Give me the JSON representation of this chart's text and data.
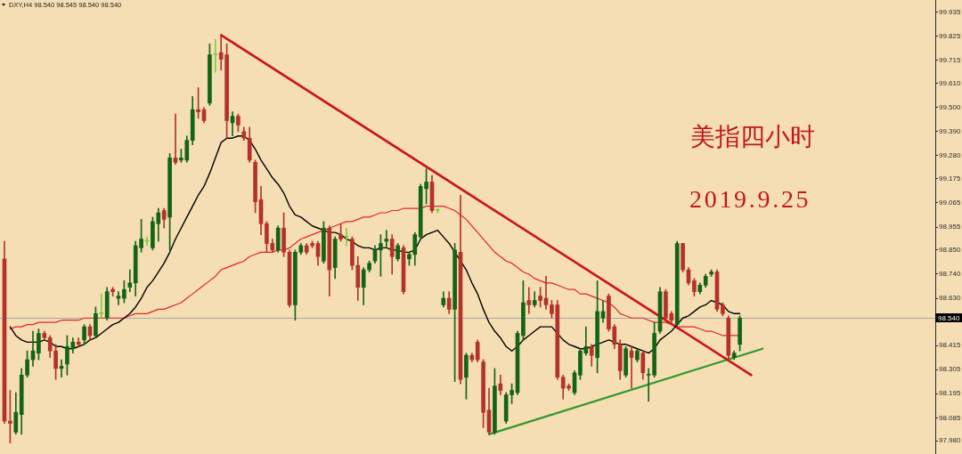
{
  "chart_data": {
    "type": "candlestick",
    "title": "美指四小时",
    "subtitle": "2019.9.25",
    "annotations": [
      "DXY,H4  98.540 98.545 98.540 98.540"
    ],
    "categories": [
      null,
      null,
      null,
      null,
      null,
      null,
      null,
      null,
      null,
      null,
      null,
      null,
      null,
      null,
      null,
      null,
      null,
      null,
      null,
      null,
      null,
      null,
      null,
      null,
      null,
      null,
      null,
      null,
      null,
      null,
      null,
      null,
      null,
      null,
      null,
      null,
      null,
      null,
      null,
      null,
      null,
      null,
      null,
      null,
      null,
      null,
      null,
      null,
      null,
      null,
      null,
      null,
      null,
      null,
      null,
      null,
      null,
      null,
      null,
      null,
      null,
      null,
      null,
      null,
      null,
      null,
      null,
      null,
      null,
      null,
      null,
      null,
      null,
      null,
      null,
      null,
      null,
      null,
      null,
      null,
      null,
      null,
      null,
      null,
      null,
      null,
      null,
      null,
      null,
      null,
      null,
      null,
      null,
      null,
      null,
      null,
      null,
      null,
      null,
      null,
      null,
      null,
      null,
      null,
      null,
      null,
      null,
      null,
      null,
      null,
      null,
      null,
      null,
      null,
      null,
      null,
      null,
      null,
      null,
      null,
      null,
      null,
      null,
      null,
      null,
      null,
      null,
      null,
      null,
      null,
      null,
      null,
      null,
      null
    ],
    "ohlc": [
      [
        98.81,
        98.89,
        98.06,
        98.07
      ],
      [
        98.07,
        98.21,
        97.97,
        98.06
      ],
      [
        98.02,
        98.2,
        98.01,
        98.11
      ],
      [
        98.1,
        98.31,
        98.01,
        98.28
      ],
      [
        98.28,
        98.39,
        98.27,
        98.35
      ],
      [
        98.35,
        98.48,
        98.32,
        98.39
      ],
      [
        98.38,
        98.49,
        98.35,
        98.47
      ],
      [
        98.47,
        98.48,
        98.44,
        98.45
      ],
      [
        98.45,
        98.46,
        98.36,
        98.39
      ],
      [
        98.39,
        98.42,
        98.26,
        98.31
      ],
      [
        98.31,
        98.35,
        98.27,
        98.32
      ],
      [
        98.33,
        98.46,
        98.28,
        98.41
      ],
      [
        98.4,
        98.45,
        98.38,
        98.43
      ],
      [
        98.43,
        98.45,
        98.41,
        98.42
      ],
      [
        98.44,
        98.51,
        98.42,
        98.5
      ],
      [
        98.5,
        98.51,
        98.44,
        98.46
      ],
      [
        98.46,
        98.59,
        98.45,
        98.56
      ],
      [
        98.56,
        98.65,
        98.54,
        98.56
      ],
      [
        98.54,
        98.68,
        98.53,
        98.66
      ],
      [
        98.67,
        98.68,
        98.64,
        98.66
      ],
      [
        98.63,
        98.66,
        98.6,
        98.64
      ],
      [
        98.63,
        98.71,
        98.61,
        98.67
      ],
      [
        98.68,
        98.76,
        98.66,
        98.7
      ],
      [
        98.7,
        98.89,
        98.64,
        98.87
      ],
      [
        98.86,
        98.99,
        98.84,
        98.9
      ],
      [
        98.89,
        98.91,
        98.87,
        98.89
      ],
      [
        98.86,
        99,
        98.85,
        98.98
      ],
      [
        98.97,
        99.04,
        98.89,
        99.02
      ],
      [
        99.03,
        99.04,
        98.95,
        98.99
      ],
      [
        99,
        99.29,
        98.85,
        99.27
      ],
      [
        99.27,
        99.47,
        99.24,
        99.25
      ],
      [
        99.26,
        99.31,
        99.25,
        99.27
      ],
      [
        99.26,
        99.37,
        99.25,
        99.35
      ],
      [
        99.35,
        99.55,
        99.33,
        99.49
      ],
      [
        99.49,
        99.59,
        99.45,
        99.48
      ],
      [
        99.49,
        99.5,
        99.43,
        99.44
      ],
      [
        99.52,
        99.79,
        99.51,
        99.74
      ],
      [
        99.74,
        99.81,
        99.66,
        99.74
      ],
      [
        99.75,
        99.83,
        99.67,
        99.72
      ],
      [
        99.74,
        99.79,
        99.36,
        99.44
      ],
      [
        99.43,
        99.48,
        99.37,
        99.46
      ],
      [
        99.46,
        99.47,
        99.39,
        99.42
      ],
      [
        99.39,
        99.41,
        99.35,
        99.36
      ],
      [
        99.36,
        99.41,
        99.25,
        99.26
      ],
      [
        99.25,
        99.26,
        99.02,
        99.07
      ],
      [
        99.08,
        99.14,
        98.92,
        98.97
      ],
      [
        98.97,
        98.98,
        98.84,
        98.88
      ],
      [
        98.88,
        98.9,
        98.84,
        98.85
      ],
      [
        98.85,
        98.96,
        98.84,
        98.95
      ],
      [
        98.95,
        99.02,
        98.82,
        98.84
      ],
      [
        98.84,
        98.85,
        98.59,
        98.6
      ],
      [
        98.6,
        98.85,
        98.53,
        98.84
      ],
      [
        98.84,
        98.88,
        98.83,
        98.87
      ],
      [
        98.87,
        98.88,
        98.83,
        98.84
      ],
      [
        98.88,
        98.89,
        98.86,
        98.87
      ],
      [
        98.88,
        98.89,
        98.78,
        98.82
      ],
      [
        98.8,
        98.98,
        98.79,
        98.95
      ],
      [
        98.95,
        98.96,
        98.64,
        98.76
      ],
      [
        98.77,
        98.91,
        98.72,
        98.9
      ],
      [
        98.92,
        98.97,
        98.89,
        98.9
      ],
      [
        98.91,
        98.95,
        98.87,
        98.91
      ],
      [
        98.9,
        98.91,
        98.76,
        98.78
      ],
      [
        98.78,
        98.82,
        98.62,
        98.68
      ],
      [
        98.68,
        98.77,
        98.6,
        98.76
      ],
      [
        98.76,
        98.8,
        98.75,
        98.79
      ],
      [
        98.8,
        98.87,
        98.79,
        98.85
      ],
      [
        98.85,
        98.92,
        98.73,
        98.88
      ],
      [
        98.89,
        98.94,
        98.86,
        98.9
      ],
      [
        98.9,
        98.92,
        98.74,
        98.82
      ],
      [
        98.81,
        98.88,
        98.8,
        98.87
      ],
      [
        98.86,
        98.87,
        98.65,
        98.66
      ],
      [
        98.81,
        98.84,
        98.78,
        98.83
      ],
      [
        98.83,
        98.93,
        98.78,
        98.92
      ],
      [
        98.91,
        99.15,
        98.9,
        99.14
      ],
      [
        99.13,
        99.22,
        99.06,
        99.16
      ],
      [
        99.16,
        99.19,
        99.02,
        99.03
      ],
      [
        99.03,
        99.04,
        99.02,
        99.03
      ],
      [
        98.6,
        98.66,
        98.59,
        98.63
      ],
      [
        98.63,
        98.66,
        98.56,
        98.58
      ],
      [
        98.58,
        98.88,
        98.25,
        98.85
      ],
      [
        98.84,
        99.1,
        98.24,
        98.26
      ],
      [
        98.27,
        98.38,
        98.17,
        98.37
      ],
      [
        98.37,
        98.38,
        98.34,
        98.35
      ],
      [
        98.43,
        98.44,
        98.34,
        98.35
      ],
      [
        98.34,
        98.35,
        98.04,
        98.11
      ],
      [
        98.12,
        98.22,
        98.01,
        98.02
      ],
      [
        98.02,
        98.31,
        98.01,
        98.23
      ],
      [
        98.24,
        98.28,
        98.19,
        98.21
      ],
      [
        98.07,
        98.2,
        98.06,
        98.19
      ],
      [
        98.19,
        98.24,
        98.15,
        98.21
      ],
      [
        98.2,
        98.48,
        98.19,
        98.47
      ],
      [
        98.46,
        98.71,
        98.44,
        98.61
      ],
      [
        98.62,
        98.68,
        98.56,
        98.6
      ],
      [
        98.6,
        98.66,
        98.59,
        98.62
      ],
      [
        98.64,
        98.68,
        98.59,
        98.62
      ],
      [
        98.63,
        98.73,
        98.58,
        98.6
      ],
      [
        98.6,
        98.62,
        98.54,
        98.56
      ],
      [
        98.6,
        98.62,
        98.26,
        98.27
      ],
      [
        98.27,
        98.28,
        98.17,
        98.22
      ],
      [
        98.23,
        98.24,
        98.21,
        98.22
      ],
      [
        98.2,
        98.3,
        98.19,
        98.29
      ],
      [
        98.28,
        98.4,
        98.26,
        98.39
      ],
      [
        98.38,
        98.5,
        98.37,
        98.41
      ],
      [
        98.41,
        98.42,
        98.32,
        98.37
      ],
      [
        98.36,
        98.71,
        98.29,
        98.57
      ],
      [
        98.54,
        98.62,
        98.52,
        98.57
      ],
      [
        98.64,
        98.65,
        98.48,
        98.49
      ],
      [
        98.5,
        98.51,
        98.4,
        98.42
      ],
      [
        98.42,
        98.44,
        98.26,
        98.3
      ],
      [
        98.28,
        98.41,
        98.27,
        98.4
      ],
      [
        98.39,
        98.41,
        98.22,
        98.36
      ],
      [
        98.35,
        98.4,
        98.34,
        98.39
      ],
      [
        98.38,
        98.39,
        98.26,
        98.29
      ],
      [
        98.28,
        98.31,
        98.16,
        98.28
      ],
      [
        98.28,
        98.52,
        98.27,
        98.47
      ],
      [
        98.48,
        98.68,
        98.47,
        98.66
      ],
      [
        98.66,
        98.67,
        98.53,
        98.54
      ],
      [
        98.56,
        98.57,
        98.52,
        98.53
      ],
      [
        98.51,
        98.89,
        98.5,
        98.88
      ],
      [
        98.88,
        98.88,
        98.75,
        98.76
      ],
      [
        98.76,
        98.77,
        98.69,
        98.7
      ],
      [
        98.71,
        98.72,
        98.64,
        98.66
      ],
      [
        98.66,
        98.7,
        98.65,
        98.69
      ],
      [
        98.69,
        98.74,
        98.68,
        98.73
      ],
      [
        98.74,
        98.76,
        98.73,
        98.75
      ],
      [
        98.75,
        98.76,
        98.57,
        98.58
      ],
      [
        98.6,
        98.61,
        98.55,
        98.56
      ],
      [
        98.54,
        98.55,
        98.35,
        98.37
      ],
      [
        98.36,
        98.39,
        98.35,
        98.38
      ],
      [
        98.42,
        98.55,
        98.39,
        98.54
      ],
      null,
      null,
      null,
      null
    ],
    "colors": [
      "#b4322a",
      "#b4322a",
      "#146414",
      "#146414",
      "#146414",
      "#146414",
      "#146414",
      "#b4322a",
      "#b4322a",
      "#b4322a",
      "#146414",
      "#146414",
      "#146414",
      "#b4322a",
      "#146414",
      "#b4322a",
      "#146414",
      "#7ccf3c",
      "#146414",
      "#b4322a",
      "#146414",
      "#146414",
      "#146414",
      "#146414",
      "#146414",
      "#7ccf3c",
      "#146414",
      "#146414",
      "#b4322a",
      "#146414",
      "#b4322a",
      "#146414",
      "#146414",
      "#146414",
      "#b4322a",
      "#b4322a",
      "#146414",
      "#7ccf3c",
      "#b4322a",
      "#b4322a",
      "#146414",
      "#b4322a",
      "#b4322a",
      "#b4322a",
      "#b4322a",
      "#b4322a",
      "#b4322a",
      "#b4322a",
      "#146414",
      "#b4322a",
      "#b4322a",
      "#146414",
      "#146414",
      "#b4322a",
      "#b4322a",
      "#b4322a",
      "#146414",
      "#b4322a",
      "#146414",
      "#b4322a",
      "#7ccf3c",
      "#b4322a",
      "#b4322a",
      "#146414",
      "#146414",
      "#146414",
      "#146414",
      "#146414",
      "#b4322a",
      "#146414",
      "#b4322a",
      "#146414",
      "#146414",
      "#146414",
      "#146414",
      "#b4322a",
      "#7ccf3c",
      "#146414",
      "#b4322a",
      "#146414",
      "#b4322a",
      "#146414",
      "#b4322a",
      "#b4322a",
      "#b4322a",
      "#b4322a",
      "#146414",
      "#b4322a",
      "#146414",
      "#146414",
      "#146414",
      "#146414",
      "#b4322a",
      "#146414",
      "#b4322a",
      "#b4322a",
      "#b4322a",
      "#b4322a",
      "#b4322a",
      "#b4322a",
      "#146414",
      "#146414",
      "#146414",
      "#b4322a",
      "#146414",
      "#146414",
      "#b4322a",
      "#b4322a",
      "#b4322a",
      "#146414",
      "#b4322a",
      "#146414",
      "#b4322a",
      "#146414",
      "#146414",
      "#146414",
      "#b4322a",
      "#b4322a",
      "#146414",
      "#b4322a",
      "#b4322a",
      "#b4322a",
      "#146414",
      "#146414",
      "#146414",
      "#b4322a",
      "#b4322a",
      "#b4322a",
      "#146414",
      "#146414",
      null,
      null,
      null,
      null
    ],
    "series": [
      {
        "type": "line",
        "color": "#000000",
        "values": [
          null,
          98.5,
          98.46,
          98.44,
          98.43,
          98.43,
          98.43,
          98.44,
          98.43,
          98.41,
          98.41,
          98.4,
          98.4,
          98.41,
          98.42,
          98.44,
          98.45,
          98.47,
          98.49,
          98.51,
          98.52,
          98.54,
          98.56,
          98.59,
          98.63,
          98.68,
          98.71,
          98.75,
          98.79,
          98.84,
          98.9,
          98.95,
          99,
          99.05,
          99.1,
          99.14,
          99.2,
          99.27,
          99.34,
          99.36,
          99.36,
          99.37,
          99.37,
          99.35,
          99.31,
          99.26,
          99.22,
          99.18,
          99.15,
          99.11,
          99.05,
          99.01,
          99,
          98.98,
          98.96,
          98.95,
          98.94,
          98.93,
          98.93,
          98.92,
          98.9,
          98.89,
          98.87,
          98.86,
          98.86,
          98.85,
          98.86,
          98.86,
          98.85,
          98.85,
          98.84,
          98.84,
          98.85,
          98.9,
          98.92,
          98.93,
          98.94,
          98.91,
          98.88,
          98.84,
          98.8,
          98.76,
          98.7,
          98.65,
          98.58,
          98.52,
          98.48,
          98.45,
          98.41,
          98.39,
          98.41,
          98.44,
          98.46,
          98.48,
          98.5,
          98.5,
          98.5,
          98.47,
          98.44,
          98.42,
          98.41,
          98.4,
          98.4,
          98.41,
          98.42,
          98.43,
          98.44,
          98.43,
          98.42,
          98.42,
          98.41,
          98.4,
          98.39,
          98.38,
          98.4,
          98.44,
          98.46,
          98.48,
          98.51,
          98.54,
          98.55,
          98.57,
          98.59,
          98.6,
          98.62,
          98.61,
          98.6,
          98.57,
          98.56,
          98.56,
          null,
          null,
          null,
          null
        ]
      },
      {
        "type": "line",
        "color": "#e3242b",
        "values": [
          null,
          98.49,
          98.5,
          98.5,
          98.51,
          98.51,
          98.52,
          98.52,
          98.52,
          98.52,
          98.53,
          98.53,
          98.53,
          98.53,
          98.54,
          98.54,
          98.54,
          98.54,
          98.54,
          98.54,
          98.54,
          98.54,
          98.55,
          98.56,
          98.56,
          98.56,
          98.57,
          98.58,
          98.58,
          98.59,
          98.6,
          98.61,
          98.63,
          98.65,
          98.67,
          98.69,
          98.71,
          98.73,
          98.76,
          98.77,
          98.78,
          98.79,
          98.8,
          98.82,
          98.83,
          98.84,
          98.84,
          98.84,
          98.85,
          98.85,
          98.86,
          98.88,
          98.9,
          98.91,
          98.92,
          98.93,
          98.94,
          98.95,
          98.96,
          98.97,
          98.98,
          98.98,
          98.99,
          99,
          99,
          99.01,
          99.02,
          99.02,
          99.03,
          99.03,
          99.04,
          99.04,
          99.04,
          99.04,
          99.05,
          99.05,
          99.05,
          99.05,
          99.04,
          99.03,
          99.01,
          98.99,
          98.96,
          98.93,
          98.9,
          98.87,
          98.84,
          98.82,
          98.8,
          98.79,
          98.77,
          98.75,
          98.74,
          98.72,
          98.71,
          98.7,
          98.7,
          98.69,
          98.68,
          98.67,
          98.67,
          98.65,
          98.65,
          98.64,
          98.63,
          98.62,
          98.61,
          98.59,
          98.56,
          98.55,
          98.54,
          98.54,
          98.54,
          98.53,
          98.52,
          98.52,
          98.52,
          98.51,
          98.5,
          98.5,
          98.5,
          98.5,
          98.49,
          98.48,
          98.48,
          98.47,
          98.46,
          98.46,
          98.46,
          98.46,
          null,
          null,
          null,
          null
        ]
      },
      {
        "type": "line",
        "color": "#c8161d",
        "values": [
          null,
          null,
          null,
          null,
          null,
          null,
          null,
          null,
          null,
          null,
          null,
          null,
          null,
          null,
          null,
          null,
          null,
          null,
          null,
          null,
          null,
          null,
          null,
          null,
          null,
          null,
          null,
          null,
          null,
          null,
          null,
          null,
          null,
          null,
          null,
          null,
          null,
          null,
          99.83,
          null,
          null,
          null,
          null,
          null,
          null,
          null,
          null,
          null,
          null,
          null,
          null,
          null,
          null,
          null,
          null,
          null,
          null,
          null,
          null,
          null,
          null,
          null,
          null,
          null,
          null,
          null,
          null,
          null,
          null,
          null,
          null,
          null,
          null,
          null,
          null,
          null,
          null,
          null,
          null,
          null,
          null,
          null,
          null,
          null,
          null,
          null,
          null,
          null,
          null,
          null,
          null,
          null,
          null,
          null,
          null,
          null,
          null,
          null,
          null,
          null,
          null,
          null,
          null,
          null,
          null,
          null,
          null,
          null,
          null,
          null,
          null,
          null,
          null,
          null,
          null,
          null,
          null,
          null,
          null,
          null,
          null,
          null,
          null,
          null,
          null,
          null,
          null,
          null,
          null,
          null,
          null,
          98.28,
          null,
          null
        ]
      },
      {
        "type": "line",
        "color": "#2e9a2e",
        "values": [
          null,
          null,
          null,
          null,
          null,
          null,
          null,
          null,
          null,
          null,
          null,
          null,
          null,
          null,
          null,
          null,
          null,
          null,
          null,
          null,
          null,
          null,
          null,
          null,
          null,
          null,
          null,
          null,
          null,
          null,
          null,
          null,
          null,
          null,
          null,
          null,
          null,
          null,
          null,
          null,
          null,
          null,
          null,
          null,
          null,
          null,
          null,
          null,
          null,
          null,
          null,
          null,
          null,
          null,
          null,
          null,
          null,
          null,
          null,
          null,
          null,
          null,
          null,
          null,
          null,
          null,
          null,
          null,
          null,
          null,
          null,
          null,
          null,
          null,
          null,
          null,
          null,
          null,
          null,
          null,
          null,
          null,
          null,
          null,
          null,
          98.01,
          null,
          null,
          null,
          null,
          null,
          null,
          null,
          null,
          null,
          null,
          null,
          null,
          null,
          null,
          null,
          null,
          null,
          null,
          null,
          null,
          null,
          null,
          null,
          null,
          null,
          null,
          null,
          null,
          null,
          null,
          null,
          null,
          null,
          null,
          null,
          null,
          null,
          null,
          null,
          null,
          null,
          null,
          null,
          null,
          null,
          null,
          null,
          98.4
        ]
      }
    ],
    "ylim": [
      97.92,
      99.99
    ],
    "yticks": [
      99.935,
      99.825,
      99.715,
      {
        "value": 99.61,
        "label": "99.610"
      },
      {
        "value": 99.5,
        "label": "99.500"
      },
      {
        "value": 99.39,
        "label": "99.390"
      },
      {
        "value": 99.28,
        "label": "99.280"
      },
      99.175,
      99.065,
      98.955,
      {
        "value": 98.85,
        "label": "98.850"
      },
      {
        "value": 98.74,
        "label": "98.740"
      },
      {
        "value": 98.63,
        "label": "98.630"
      },
      98.415,
      98.305,
      98.195,
      98.085,
      {
        "value": 97.98,
        "label": "97.980"
      }
    ],
    "ref_lines": [
      {
        "axis": "y",
        "value": 98.54,
        "label": "98.540",
        "color": "#a8a8a8"
      }
    ],
    "tick_labels": "y"
  }
}
